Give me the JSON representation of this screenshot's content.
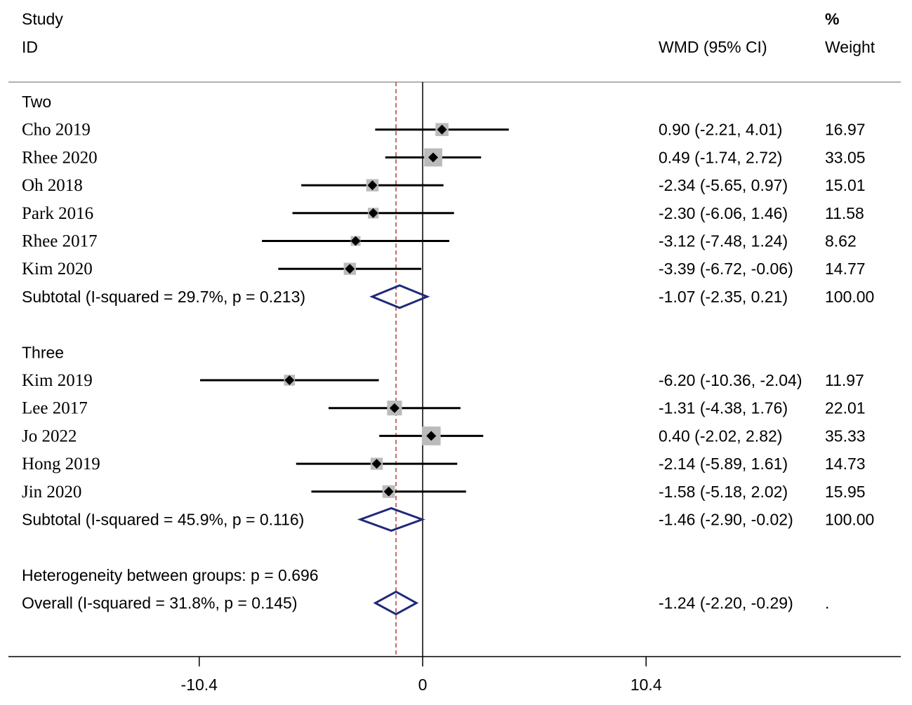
{
  "header": {
    "study_label": "Study",
    "id_label": "ID",
    "effect_label": "WMD (95% CI)",
    "pct_label": "%",
    "weight_label": "Weight"
  },
  "chart_data": {
    "type": "forest",
    "x_ticks": [
      -10.4,
      0,
      10.4
    ],
    "x_tick_labels": [
      "-10.4",
      "0",
      "10.4"
    ],
    "xlim": [
      -19.0,
      21.9
    ],
    "null_line": 0,
    "overall_effect_line": -1.24,
    "colors": {
      "ci": "#000000",
      "weight_box": "#bbbbbb",
      "diamond": "#1f2a7a",
      "ref_line": "#b03030"
    },
    "rows": [
      {
        "kind": "group",
        "label": "Two"
      },
      {
        "kind": "study",
        "label": "Cho 2019",
        "est": 0.9,
        "lo": -2.21,
        "hi": 4.01,
        "ci_text": "0.90 (-2.21, 4.01)",
        "weight": "16.97"
      },
      {
        "kind": "study",
        "label": "Rhee 2020",
        "est": 0.49,
        "lo": -1.74,
        "hi": 2.72,
        "ci_text": "0.49 (-1.74, 2.72)",
        "weight": "33.05"
      },
      {
        "kind": "study",
        "label": "Oh 2018",
        "est": -2.34,
        "lo": -5.65,
        "hi": 0.97,
        "ci_text": "-2.34 (-5.65, 0.97)",
        "weight": "15.01"
      },
      {
        "kind": "study",
        "label": "Park 2016",
        "est": -2.3,
        "lo": -6.06,
        "hi": 1.46,
        "ci_text": "-2.30 (-6.06, 1.46)",
        "weight": "11.58"
      },
      {
        "kind": "study",
        "label": "Rhee 2017",
        "est": -3.12,
        "lo": -7.48,
        "hi": 1.24,
        "ci_text": "-3.12 (-7.48, 1.24)",
        "weight": "8.62"
      },
      {
        "kind": "study",
        "label": "Kim 2020",
        "est": -3.39,
        "lo": -6.72,
        "hi": -0.06,
        "ci_text": "-3.39 (-6.72, -0.06)",
        "weight": "14.77"
      },
      {
        "kind": "subtotal",
        "label": "Subtotal  (I-squared = 29.7%, p = 0.213)",
        "est": -1.07,
        "lo": -2.35,
        "hi": 0.21,
        "ci_text": "-1.07 (-2.35, 0.21)",
        "weight": "100.00"
      },
      {
        "kind": "blank"
      },
      {
        "kind": "group",
        "label": "Three"
      },
      {
        "kind": "study",
        "label": "Kim 2019",
        "est": -6.2,
        "lo": -10.36,
        "hi": -2.04,
        "ci_text": "-6.20 (-10.36, -2.04)",
        "weight": "11.97"
      },
      {
        "kind": "study",
        "label": "Lee 2017",
        "est": -1.31,
        "lo": -4.38,
        "hi": 1.76,
        "ci_text": "-1.31 (-4.38, 1.76)",
        "weight": "22.01"
      },
      {
        "kind": "study",
        "label": "Jo 2022",
        "est": 0.4,
        "lo": -2.02,
        "hi": 2.82,
        "ci_text": "0.40 (-2.02, 2.82)",
        "weight": "35.33"
      },
      {
        "kind": "study",
        "label": "Hong 2019",
        "est": -2.14,
        "lo": -5.89,
        "hi": 1.61,
        "ci_text": "-2.14 (-5.89, 1.61)",
        "weight": "14.73"
      },
      {
        "kind": "study",
        "label": "Jin 2020",
        "est": -1.58,
        "lo": -5.18,
        "hi": 2.02,
        "ci_text": "-1.58 (-5.18, 2.02)",
        "weight": "15.95"
      },
      {
        "kind": "subtotal",
        "label": "Subtotal  (I-squared = 45.9%, p = 0.116)",
        "est": -1.46,
        "lo": -2.9,
        "hi": -0.02,
        "ci_text": "-1.46 (-2.90, -0.02)",
        "weight": "100.00"
      },
      {
        "kind": "blank"
      },
      {
        "kind": "note",
        "label": "Heterogeneity between groups: p = 0.696"
      },
      {
        "kind": "overall",
        "label": "Overall  (I-squared = 31.8%, p = 0.145)",
        "est": -1.24,
        "lo": -2.2,
        "hi": -0.29,
        "ci_text": "-1.24 (-2.20, -0.29)",
        "weight": "."
      }
    ]
  }
}
